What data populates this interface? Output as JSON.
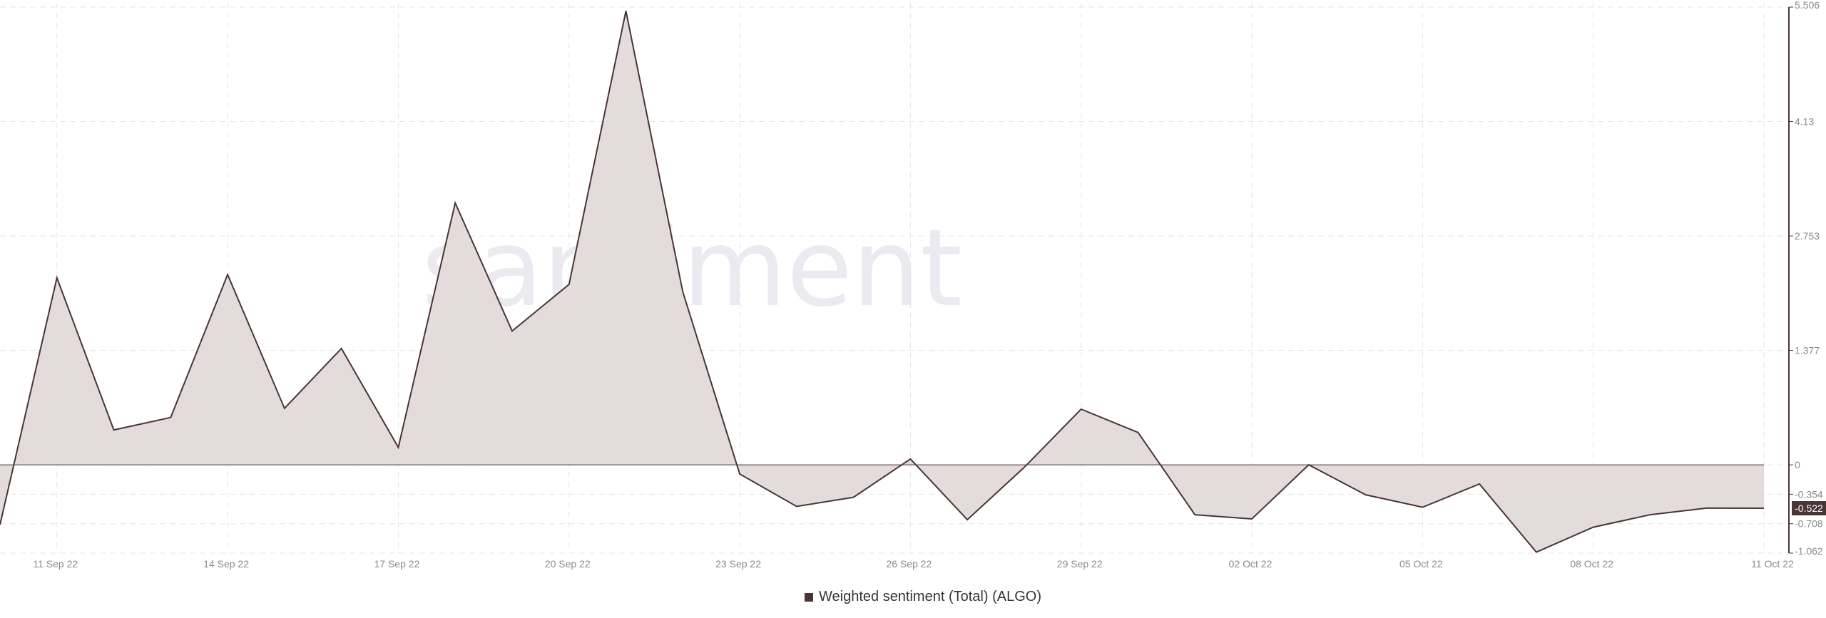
{
  "watermark": "santiment",
  "colors": {
    "line": "#4a3535",
    "fill": "#e4dcdc",
    "grid": "#e6e6e6",
    "axis": "#4a3535",
    "badge": "#4a3535"
  },
  "chart_data": {
    "type": "area",
    "title": "",
    "xlabel": "",
    "ylabel": "",
    "x": [
      "10 Sep 22",
      "11 Sep 22",
      "12 Sep 22",
      "13 Sep 22",
      "14 Sep 22",
      "15 Sep 22",
      "16 Sep 22",
      "17 Sep 22",
      "18 Sep 22",
      "19 Sep 22",
      "20 Sep 22",
      "21 Sep 22",
      "22 Sep 22",
      "23 Sep 22",
      "24 Sep 22",
      "25 Sep 22",
      "26 Sep 22",
      "27 Sep 22",
      "28 Sep 22",
      "29 Sep 22",
      "30 Sep 22",
      "01 Oct 22",
      "02 Oct 22",
      "03 Oct 22",
      "04 Oct 22",
      "05 Oct 22",
      "06 Oct 22",
      "07 Oct 22",
      "08 Oct 22",
      "09 Oct 22",
      "10 Oct 22",
      "11 Oct 22"
    ],
    "x_tick_labels": [
      "11 Sep 22",
      "14 Sep 22",
      "17 Sep 22",
      "20 Sep 22",
      "23 Sep 22",
      "26 Sep 22",
      "29 Sep 22",
      "02 Oct 22",
      "05 Oct 22",
      "08 Oct 22",
      "11 Oct 22"
    ],
    "y_tick_labels": [
      "5.506",
      "4.13",
      "2.753",
      "1.377",
      "0",
      "-0.354",
      "-0.708",
      "-1.062"
    ],
    "ylim": [
      -1.062,
      5.506
    ],
    "grid": true,
    "legend": "bottom-center",
    "last_value_label": "-0.522",
    "series": [
      {
        "name": "Weighted sentiment (Total) (ALGO)",
        "values": [
          -0.72,
          2.25,
          0.42,
          0.57,
          2.29,
          0.68,
          1.4,
          0.21,
          3.15,
          1.61,
          2.17,
          5.46,
          2.08,
          -0.11,
          -0.5,
          -0.39,
          0.07,
          -0.66,
          -0.03,
          0.67,
          0.39,
          -0.6,
          -0.65,
          0.0,
          -0.36,
          -0.51,
          -0.23,
          -1.05,
          -0.75,
          -0.6,
          -0.52,
          -0.522
        ]
      }
    ]
  }
}
